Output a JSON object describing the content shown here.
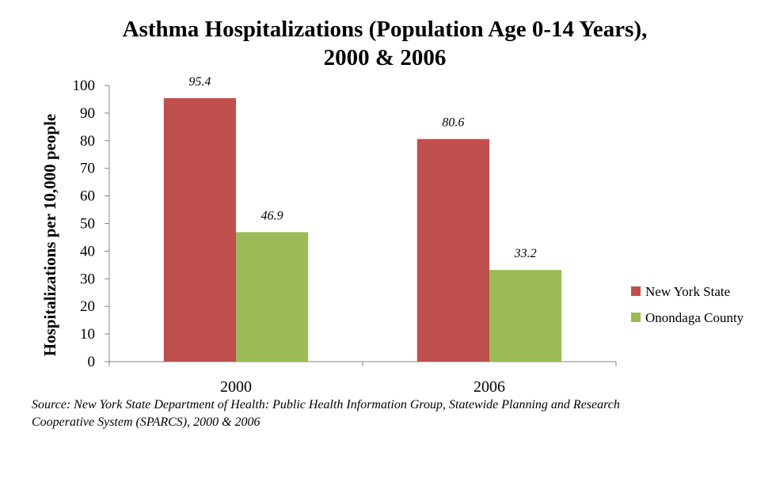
{
  "chart_data": {
    "type": "bar",
    "title_line1": "Asthma Hospitalizations  (Population Age 0-14 Years),",
    "title_line2": "2000 & 2006",
    "ylabel": "Hospitalizations per 10,000 people",
    "xlabel": "",
    "ylim": [
      0,
      100
    ],
    "yticks": [
      0,
      10,
      20,
      30,
      40,
      50,
      60,
      70,
      80,
      90,
      100
    ],
    "categories": [
      "2000",
      "2006"
    ],
    "series": [
      {
        "name": "New York State",
        "color": "#c0504d",
        "values": [
          95.4,
          80.6
        ],
        "labels": [
          "95.4",
          "80.6"
        ]
      },
      {
        "name": "Onondaga County",
        "color": "#9bbb59",
        "values": [
          46.9,
          33.2
        ],
        "labels": [
          "46.9",
          "33.2"
        ]
      }
    ],
    "grid": false,
    "legend_position": "right"
  },
  "source": {
    "line1": "Source: New York State Department of Health: Public Health Information Group, Statewide Planning and Research",
    "line2": "Cooperative System (SPARCS), 2000 & 2006"
  }
}
